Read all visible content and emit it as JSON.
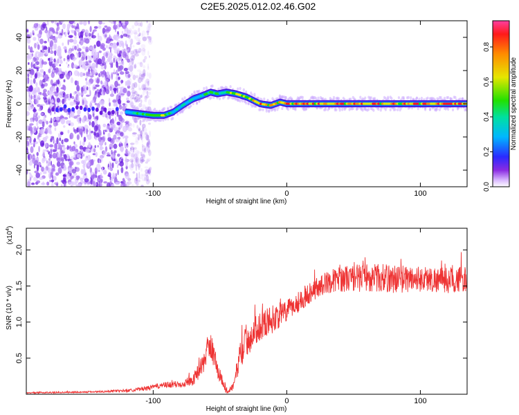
{
  "title": "C2E5.2025.012.02.46.G02",
  "chart_data": [
    {
      "type": "heatmap",
      "name": "spectrogram",
      "xlabel": "Height of straight line (km)",
      "ylabel": "Frequency (Hz)",
      "xlim": [
        -195,
        135
      ],
      "ylim": [
        -50,
        50
      ],
      "xticks": [
        -100,
        0,
        100
      ],
      "yticks": [
        -40,
        -20,
        0,
        20,
        40
      ],
      "colorbar": {
        "label": "Normalized spectral amplitude",
        "range": [
          0.0,
          0.95
        ],
        "ticks": [
          0.0,
          0.2,
          0.4,
          0.6,
          0.8
        ],
        "tick_labels": [
          "0.0",
          "0.2",
          "0.4",
          "0.6",
          "0.8"
        ]
      },
      "ridge": {
        "x": [
          -170,
          -140,
          -120,
          -110,
          -100,
          -92,
          -85,
          -78,
          -70,
          -63,
          -57,
          -52,
          -45,
          -38,
          -30,
          -20,
          -12,
          -5,
          0,
          10,
          20,
          40,
          60,
          80,
          100,
          120,
          135
        ],
        "freq": [
          -3,
          -4,
          -5,
          -6,
          -7,
          -7,
          -5,
          -1,
          3,
          5,
          7,
          6,
          7,
          6,
          4,
          0,
          -1,
          1,
          0,
          0,
          0,
          0,
          0,
          0,
          0,
          0,
          0
        ],
        "amplitude": [
          0.3,
          0.3,
          0.45,
          0.55,
          0.75,
          0.7,
          0.55,
          0.45,
          0.45,
          0.55,
          0.6,
          0.55,
          0.65,
          0.7,
          0.75,
          0.85,
          0.8,
          0.85,
          0.9,
          0.9,
          0.9,
          0.9,
          0.9,
          0.9,
          0.9,
          0.9,
          0.9
        ]
      },
      "noise_region_x": [
        -195,
        -110
      ]
    },
    {
      "type": "line",
      "name": "snr",
      "xlabel": "Height of straight line (km)",
      "ylabel": "SNR (10 * v/v)",
      "y_multiplier": "(x10",
      "y_multiplier_exp": "4",
      "y_multiplier_close": ")",
      "xlim": [
        -195,
        135
      ],
      "ylim": [
        0,
        2.3
      ],
      "xticks": [
        -100,
        0,
        100
      ],
      "yticks": [
        0.5,
        1.0,
        1.5,
        2.0
      ],
      "ytick_labels": [
        "0.5",
        "1.0",
        "1.5",
        "2.0"
      ],
      "color": "#ee3333",
      "x": [
        -195,
        -150,
        -120,
        -105,
        -95,
        -80,
        -70,
        -62,
        -57,
        -52,
        -45,
        -40,
        -35,
        -30,
        -25,
        -20,
        -10,
        0,
        10,
        20,
        30,
        40,
        60,
        80,
        100,
        120,
        135
      ],
      "y": [
        0.02,
        0.03,
        0.05,
        0.08,
        0.12,
        0.14,
        0.2,
        0.45,
        0.7,
        0.35,
        0.05,
        0.1,
        0.55,
        0.75,
        0.85,
        0.95,
        1.05,
        1.15,
        1.3,
        1.45,
        1.55,
        1.6,
        1.62,
        1.6,
        1.6,
        1.58,
        1.6
      ],
      "noise_amplitude": [
        0.01,
        0.01,
        0.02,
        0.03,
        0.04,
        0.05,
        0.08,
        0.15,
        0.2,
        0.15,
        0.05,
        0.05,
        0.2,
        0.25,
        0.2,
        0.2,
        0.2,
        0.15,
        0.15,
        0.15,
        0.15,
        0.18,
        0.2,
        0.2,
        0.18,
        0.18,
        0.18
      ]
    }
  ]
}
